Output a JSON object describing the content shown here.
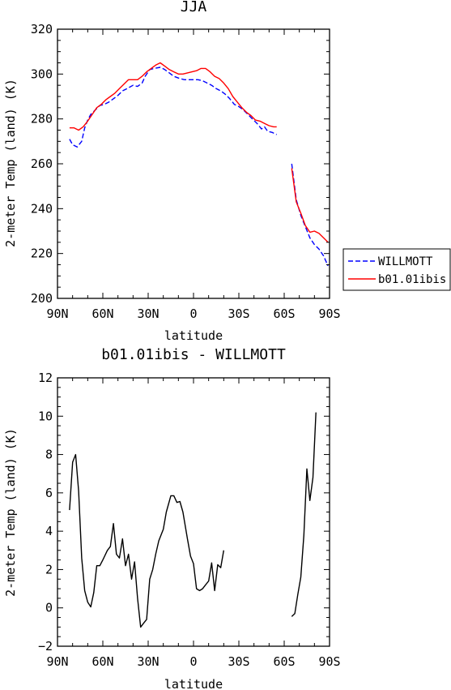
{
  "chart_data": [
    {
      "type": "line",
      "title": "JJA",
      "xlabel": "latitude",
      "ylabel": "2-meter Temp (land) (K)",
      "xlim": [
        90,
        -90
      ],
      "ylim": [
        200,
        320
      ],
      "x_ticks": [
        90,
        60,
        30,
        0,
        -30,
        -60,
        -90
      ],
      "x_tick_labels": [
        "90N",
        "60N",
        "30N",
        "0",
        "30S",
        "60S",
        "90S"
      ],
      "y_ticks": [
        200,
        220,
        240,
        260,
        280,
        300,
        320
      ],
      "y_tick_labels": [
        "200",
        "220",
        "240",
        "260",
        "280",
        "300",
        "320"
      ],
      "legend_position": "right",
      "series": [
        {
          "name": "WILLMOTT",
          "color": "#0000ff",
          "dash": "dashed",
          "segments": [
            [
              [
                82,
                271
              ],
              [
                80,
                268.5
              ],
              [
                77,
                267.5
              ],
              [
                74,
                270
              ],
              [
                72,
                276
              ],
              [
                70,
                279.5
              ],
              [
                68,
                282
              ],
              [
                65,
                284
              ],
              [
                62,
                286
              ],
              [
                59,
                286.5
              ],
              [
                56,
                287.5
              ],
              [
                53,
                289
              ],
              [
                50,
                290.5
              ],
              [
                47,
                292.5
              ],
              [
                44,
                293.5
              ],
              [
                40,
                295
              ],
              [
                37,
                294.5
              ],
              [
                34,
                296
              ],
              [
                32,
                299
              ],
              [
                29,
                302
              ],
              [
                26,
                302.5
              ],
              [
                22,
                303
              ],
              [
                19,
                302
              ],
              [
                16,
                300.5
              ],
              [
                13,
                299
              ],
              [
                9,
                298
              ],
              [
                6,
                297.5
              ],
              [
                3,
                297.5
              ],
              [
                0,
                297.5
              ],
              [
                -3,
                297.5
              ],
              [
                -6,
                297
              ],
              [
                -9,
                296
              ],
              [
                -12,
                295
              ],
              [
                -15,
                293.5
              ],
              [
                -18,
                292.5
              ],
              [
                -21,
                291
              ],
              [
                -24,
                289
              ],
              [
                -27,
                286.5
              ],
              [
                -30,
                285.5
              ],
              [
                -33,
                284
              ],
              [
                -36,
                282
              ],
              [
                -39,
                280
              ],
              [
                -42,
                278
              ],
              [
                -45,
                275.5
              ],
              [
                -47,
                276.5
              ],
              [
                -49,
                274.5
              ],
              [
                -52,
                274
              ],
              [
                -55,
                273
              ]
            ],
            [
              [
                -65,
                260
              ],
              [
                -68,
                244
              ],
              [
                -71,
                237
              ],
              [
                -74,
                232
              ],
              [
                -77,
                227
              ],
              [
                -80,
                224
              ],
              [
                -83,
                222
              ],
              [
                -86,
                219
              ],
              [
                -89,
                214.5
              ]
            ]
          ]
        },
        {
          "name": "b01.01ibis",
          "color": "#ff0000",
          "dash": "solid",
          "segments": [
            [
              [
                82,
                276
              ],
              [
                79,
                276
              ],
              [
                76,
                275
              ],
              [
                73,
                276.5
              ],
              [
                70,
                279
              ],
              [
                67,
                282
              ],
              [
                64,
                285
              ],
              [
                61,
                286.5
              ],
              [
                58,
                288.5
              ],
              [
                55,
                290
              ],
              [
                52,
                291.5
              ],
              [
                49,
                293.5
              ],
              [
                46,
                295.5
              ],
              [
                43,
                297.5
              ],
              [
                40,
                297.5
              ],
              [
                37,
                297.5
              ],
              [
                34,
                299
              ],
              [
                31,
                301
              ],
              [
                28,
                302.5
              ],
              [
                25,
                304
              ],
              [
                22,
                305
              ],
              [
                19,
                303.5
              ],
              [
                16,
                302
              ],
              [
                13,
                301
              ],
              [
                10,
                300
              ],
              [
                7,
                300
              ],
              [
                4,
                300.5
              ],
              [
                1,
                301
              ],
              [
                -2,
                301.5
              ],
              [
                -5,
                302.5
              ],
              [
                -8,
                302.5
              ],
              [
                -11,
                301
              ],
              [
                -14,
                299
              ],
              [
                -17,
                298
              ],
              [
                -20,
                296
              ],
              [
                -23,
                293.5
              ],
              [
                -26,
                290
              ],
              [
                -29,
                287.5
              ],
              [
                -32,
                285
              ],
              [
                -35,
                283
              ],
              [
                -38,
                281.5
              ],
              [
                -41,
                279.5
              ],
              [
                -44,
                279
              ],
              [
                -47,
                278
              ],
              [
                -50,
                277
              ],
              [
                -53,
                276.5
              ],
              [
                -55,
                276.5
              ]
            ],
            [
              [
                -65,
                258
              ],
              [
                -68,
                243
              ],
              [
                -71,
                238
              ],
              [
                -74,
                232.5
              ],
              [
                -77,
                229.5
              ],
              [
                -80,
                230
              ],
              [
                -83,
                229
              ],
              [
                -86,
                227
              ],
              [
                -89,
                225
              ]
            ]
          ]
        }
      ]
    },
    {
      "type": "line",
      "title": "b01.01ibis - WILLMOTT",
      "xlabel": "latitude",
      "ylabel": "2-meter Temp (land) (K)",
      "xlim": [
        90,
        -90
      ],
      "ylim": [
        -2,
        12
      ],
      "x_ticks": [
        90,
        60,
        30,
        0,
        -30,
        -60,
        -90
      ],
      "x_tick_labels": [
        "90N",
        "60N",
        "30N",
        "0",
        "30S",
        "60S",
        "90S"
      ],
      "y_ticks": [
        -2,
        0,
        2,
        4,
        6,
        8,
        10,
        12
      ],
      "y_tick_labels": [
        "−2",
        "0",
        "2",
        "4",
        "6",
        "8",
        "10",
        "12"
      ],
      "series": [
        {
          "color": "#000000",
          "dash": "solid",
          "segments": [
            [
              [
                82,
                5.1
              ],
              [
                80,
                7.6
              ],
              [
                78,
                8.0
              ],
              [
                76,
                6.1
              ],
              [
                74,
                2.6
              ],
              [
                72,
                0.9
              ],
              [
                70,
                0.3
              ],
              [
                68,
                0.05
              ],
              [
                66,
                0.8
              ],
              [
                64,
                2.2
              ],
              [
                62,
                2.2
              ],
              [
                60,
                2.5
              ],
              [
                57,
                3.0
              ],
              [
                55,
                3.2
              ],
              [
                53,
                4.4
              ],
              [
                51,
                2.8
              ],
              [
                49,
                2.6
              ],
              [
                47,
                3.6
              ],
              [
                45,
                2.2
              ],
              [
                43,
                2.8
              ],
              [
                41,
                1.5
              ],
              [
                39,
                2.4
              ],
              [
                37,
                0.5
              ],
              [
                35,
                -1.0
              ],
              [
                33,
                -0.8
              ],
              [
                31,
                -0.6
              ],
              [
                29,
                1.5
              ],
              [
                27,
                2.0
              ],
              [
                25,
                2.8
              ],
              [
                23,
                3.5
              ],
              [
                20,
                4.1
              ],
              [
                18,
                5.0
              ],
              [
                15,
                5.85
              ],
              [
                13,
                5.85
              ],
              [
                11,
                5.5
              ],
              [
                9,
                5.55
              ],
              [
                7,
                5.0
              ],
              [
                4,
                3.6
              ],
              [
                2,
                2.7
              ],
              [
                0,
                2.3
              ],
              [
                -2,
                1.0
              ],
              [
                -4,
                0.9
              ],
              [
                -6,
                1.0
              ],
              [
                -8,
                1.2
              ],
              [
                -10,
                1.4
              ],
              [
                -12,
                2.35
              ],
              [
                -14,
                0.9
              ],
              [
                -16,
                2.25
              ],
              [
                -18,
                2.1
              ],
              [
                -20,
                3.0
              ]
            ],
            [
              [
                -65,
                -0.45
              ],
              [
                -67,
                -0.3
              ],
              [
                -69,
                0.7
              ],
              [
                -71,
                1.6
              ],
              [
                -73,
                3.8
              ],
              [
                -75,
                7.25
              ],
              [
                -77,
                5.6
              ],
              [
                -79,
                6.8
              ],
              [
                -81,
                10.2
              ]
            ]
          ]
        }
      ]
    }
  ],
  "legend": {
    "items": [
      {
        "label": "WILLMOTT",
        "color": "#0000ff",
        "dash": "dashed"
      },
      {
        "label": "b01.01ibis",
        "color": "#ff0000",
        "dash": "solid"
      }
    ]
  }
}
